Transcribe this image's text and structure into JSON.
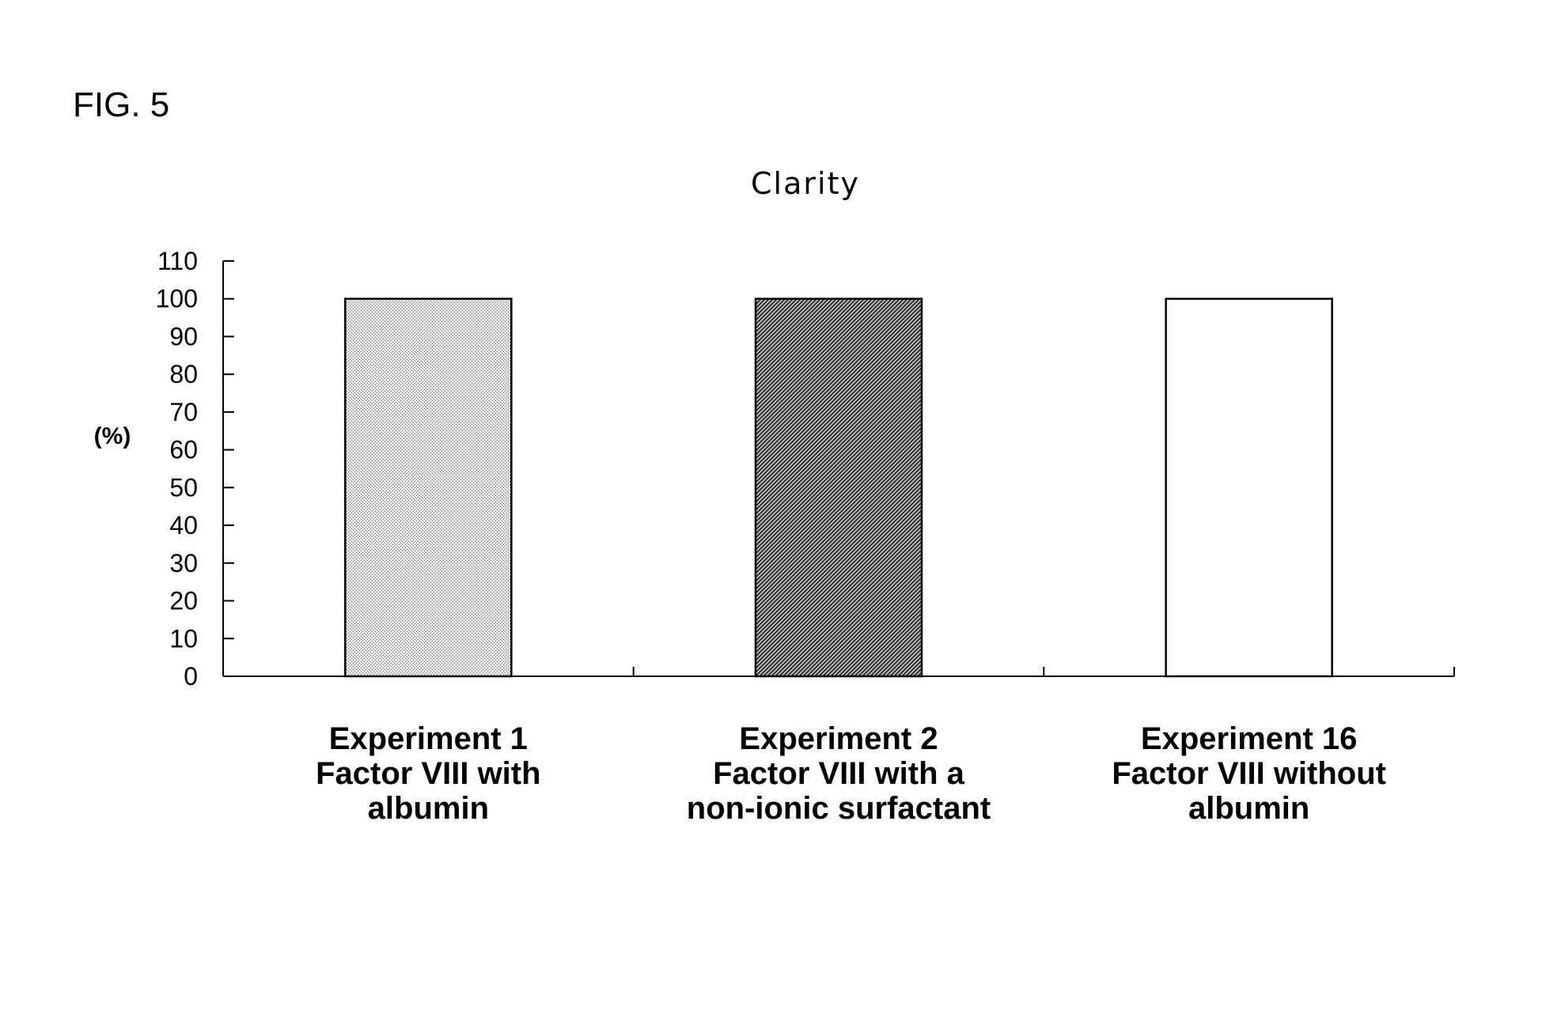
{
  "figure": {
    "label": "FIG. 5"
  },
  "chart_data": {
    "type": "bar",
    "title": "Clarity",
    "ylabel": "(%)",
    "xlabel": "",
    "ylim": [
      0,
      110
    ],
    "yticks": [
      0,
      10,
      20,
      30,
      40,
      50,
      60,
      70,
      80,
      90,
      100,
      110
    ],
    "grid": false,
    "legend": "none",
    "categories": [
      {
        "lines": [
          "Experiment 1",
          "Factor VIII with",
          "albumin"
        ]
      },
      {
        "lines": [
          "Experiment 2",
          "Factor VIII with a",
          "non-ionic surfactant"
        ]
      },
      {
        "lines": [
          "Experiment 16",
          "Factor VIII without",
          "albumin"
        ]
      }
    ],
    "values": [
      100,
      100,
      100
    ],
    "bar_fills": [
      "light-dot-pattern",
      "dark-diagonal-pattern",
      "white"
    ]
  }
}
